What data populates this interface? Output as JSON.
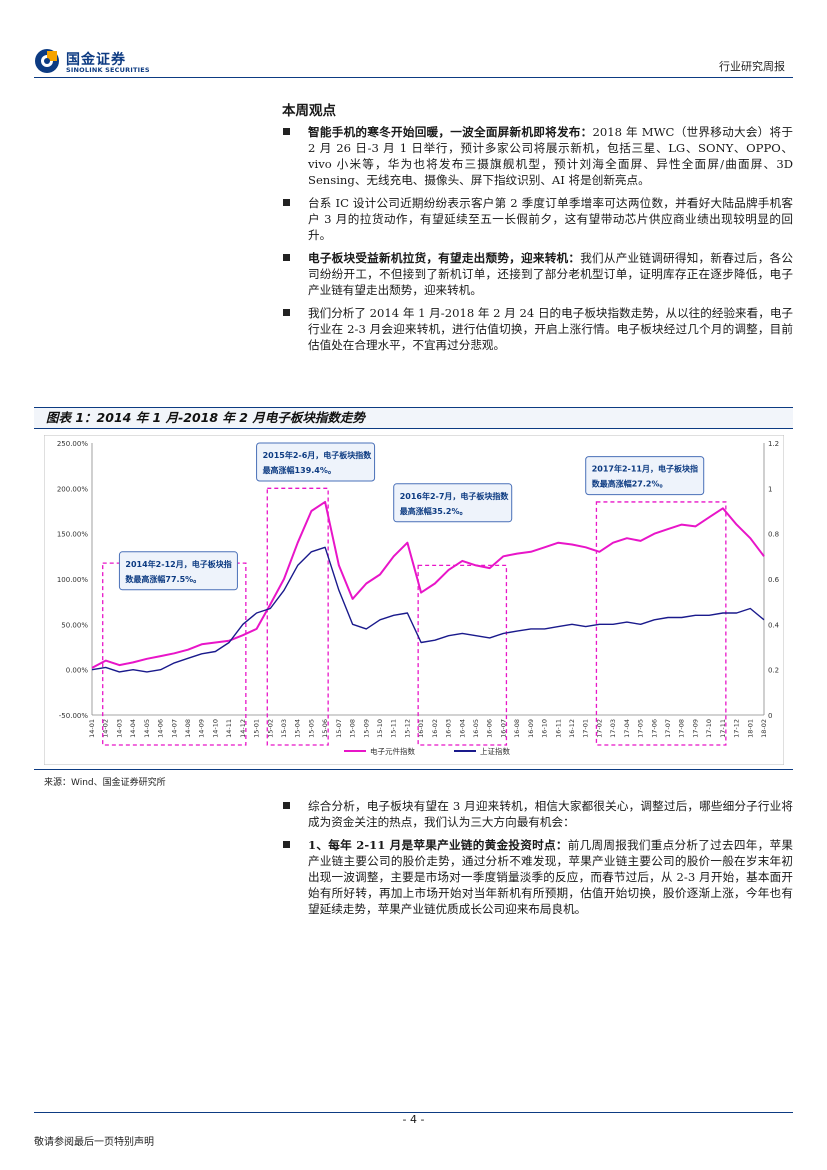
{
  "header": {
    "logo_cn": "国金证券",
    "logo_en": "SINOLINK SECURITIES",
    "report_type": "行业研究周报"
  },
  "section_title": "本周观点",
  "bullets_top": [
    {
      "bold": "智能手机的寒冬开始回暖，一波全面屏新机即将发布：",
      "text": "2018 年 MWC（世界移动大会）将于 2 月 26 日-3 月 1 日举行，预计多家公司将展示新机，包括三星、LG、SONY、OPPO、vivo 小米等，华为也将发布三摄旗舰机型，预计刘海全面屏、异性全面屏/曲面屏、3D Sensing、无线充电、摄像头、屏下指纹识别、AI 将是创新亮点。"
    },
    {
      "bold": "",
      "text": "台系 IC 设计公司近期纷纷表示客户第 2 季度订单季增率可达两位数，并看好大陆品牌手机客户 3 月的拉货动作，有望延续至五一长假前夕，这有望带动芯片供应商业绩出现较明显的回升。"
    },
    {
      "bold": "电子板块受益新机拉货，有望走出颓势，迎来转机：",
      "text": "我们从产业链调研得知，新春过后，各公司纷纷开工，不但接到了新机订单，还接到了部分老机型订单，证明库存正在逐步降低，电子产业链有望走出颓势，迎来转机。"
    },
    {
      "bold": "",
      "text": "我们分析了 2014 年 1 月-2018 年 2 月 24 日的电子板块指数走势，从以往的经验来看，电子行业在 2-3 月会迎来转机，进行估值切换，开启上涨行情。电子板块经过几个月的调整，目前估值处在合理水平，不宜再过分悲观。"
    }
  ],
  "figure": {
    "title": "图表 1：2014 年 1 月-2018 年 2 月电子板块指数走势",
    "source": "来源：Wind、国金证券研究所"
  },
  "chart_data": {
    "type": "line",
    "x_ticks": [
      "14-01",
      "14-02",
      "14-03",
      "14-04",
      "14-05",
      "14-06",
      "14-07",
      "14-08",
      "14-09",
      "14-10",
      "14-11",
      "14-12",
      "15-01",
      "15-02",
      "15-03",
      "15-04",
      "15-05",
      "15-06",
      "15-07",
      "15-08",
      "15-09",
      "15-10",
      "15-11",
      "15-12",
      "16-01",
      "16-02",
      "16-03",
      "16-04",
      "16-05",
      "16-06",
      "16-07",
      "16-08",
      "16-09",
      "16-10",
      "16-11",
      "16-12",
      "17-01",
      "17-02",
      "17-03",
      "17-04",
      "17-05",
      "17-06",
      "17-07",
      "17-08",
      "17-09",
      "17-10",
      "17-11",
      "17-12",
      "18-01",
      "18-02"
    ],
    "y_left_ticks": [
      "250.00%",
      "200.00%",
      "150.00%",
      "100.00%",
      "50.00%",
      "0.00%",
      "-50.00%"
    ],
    "y_right_ticks": [
      "1.2",
      "1",
      "0.8",
      "0.6",
      "0.4",
      "0.2",
      "0"
    ],
    "ylim_left": [
      -50,
      250
    ],
    "ylim_right": [
      0,
      1.2
    ],
    "series": [
      {
        "name": "电子元件指数",
        "color": "#e815c8",
        "axis": "left",
        "values": [
          2,
          10,
          5,
          8,
          12,
          15,
          18,
          22,
          28,
          30,
          32,
          38,
          45,
          72,
          100,
          140,
          175,
          185,
          115,
          78,
          95,
          105,
          125,
          140,
          85,
          95,
          110,
          120,
          115,
          112,
          125,
          128,
          130,
          135,
          140,
          138,
          135,
          130,
          140,
          145,
          142,
          150,
          155,
          160,
          158,
          168,
          178,
          160,
          145,
          125
        ]
      },
      {
        "name": "上证指数",
        "color": "#1a1a8c",
        "axis": "right",
        "values": [
          0.2,
          0.21,
          0.19,
          0.2,
          0.19,
          0.2,
          0.23,
          0.25,
          0.27,
          0.28,
          0.32,
          0.4,
          0.45,
          0.47,
          0.55,
          0.66,
          0.72,
          0.74,
          0.55,
          0.4,
          0.38,
          0.42,
          0.44,
          0.45,
          0.32,
          0.33,
          0.35,
          0.36,
          0.35,
          0.34,
          0.36,
          0.37,
          0.38,
          0.38,
          0.39,
          0.4,
          0.39,
          0.4,
          0.4,
          0.41,
          0.4,
          0.42,
          0.43,
          0.43,
          0.44,
          0.44,
          0.45,
          0.45,
          0.47,
          0.42
        ]
      }
    ],
    "annotations": [
      {
        "title": "2014年2-12月，电子板块指数最高涨幅",
        "value": "77.5%。"
      },
      {
        "title": "2015年2-6月，电子板块指数最高涨幅",
        "value": "139.4%。"
      },
      {
        "title": "2016年2-7月，电子板块指数最高涨幅",
        "value": "35.2%。"
      },
      {
        "title": "2017年2-11月，电子板块指数最高涨幅",
        "value": "27.2%。"
      }
    ],
    "legend_position": "bottom-center",
    "grid": false
  },
  "bullets_bottom": [
    {
      "bold": "",
      "text": "综合分析，电子板块有望在 3 月迎来转机，相信大家都很关心，调整过后，哪些细分子行业将成为资金关注的热点，我们认为三大方向最有机会："
    },
    {
      "bold": "1、每年 2-11 月是苹果产业链的黄金投资时点：",
      "text": "前几周周报我们重点分析了过去四年，苹果产业链主要公司的股价走势，通过分析不难发现，苹果产业链主要公司的股价一般在岁末年初出现一波调整，主要是市场对一季度销量淡季的反应，而春节过后，从 2-3 月开始，基本面开始有所好转，再加上市场开始对当年新机有所预期，估值开始切换，股价逐渐上涨，今年也有望延续走势，苹果产业链优质成长公司迎来布局良机。"
    }
  ],
  "footer": {
    "page": "- 4 -",
    "disclaimer": "敬请参阅最后一页特别声明"
  }
}
